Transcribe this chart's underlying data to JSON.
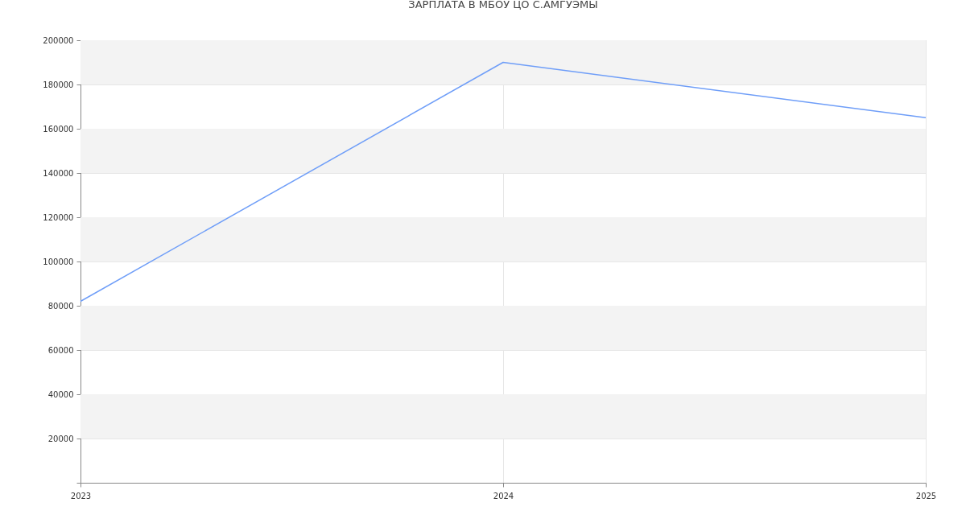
{
  "chart_data": {
    "type": "line",
    "title": "ЗАРПЛАТА В МБОУ ЦО С.АМГУЭМЫ",
    "x": [
      2023,
      2024,
      2025
    ],
    "series": [
      {
        "color": "#6f9ef8",
        "values": [
          82000,
          190000,
          165000
        ]
      }
    ],
    "xlim": [
      2023,
      2025
    ],
    "xticks": [
      2023,
      2024,
      2025
    ],
    "ylim": [
      0,
      200000
    ],
    "yticks": [
      {
        "value": 0,
        "label": null
      },
      20000,
      40000,
      60000,
      80000,
      100000,
      120000,
      140000,
      160000,
      180000,
      200000
    ],
    "grid": true,
    "marker": "none",
    "line_style": "solid"
  }
}
